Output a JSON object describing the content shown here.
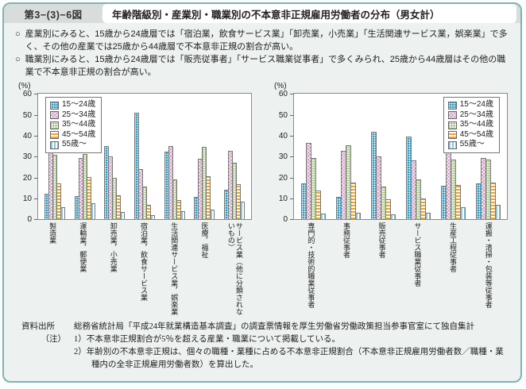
{
  "header": {
    "figure_label": "第3−(3)−6図",
    "title": "年齢階級別・産業別・職業別の不本意非正規雇用労働者の分布（男女計）"
  },
  "bullet_mark": "○",
  "bullets": [
    "産業別にみると、15歳から24歳層では「宿泊業，飲食サービス業」「卸売業，小売業」「生活関連サービス業，娯楽業」で多く、その他の産業では25歳から44歳層で不本意非正規の割合が高い。",
    "職業別にみると、15歳から24歳層では「販売従事者」「サービス職業従事者」で多くみられ、25歳から44歳層はその他の職業で不本意非正規の割合が高い。"
  ],
  "chart_data": [
    {
      "type": "bar",
      "title": "産業別の不本意非正規雇用労働者の分布",
      "unit_label": "(%)",
      "ylim": [
        0,
        60
      ],
      "yticks": [
        0,
        10,
        20,
        30,
        40,
        50,
        60
      ],
      "grid": false,
      "legend_position": "top-left",
      "categories": [
        "製造業",
        "運輸業，郵便業",
        "卸売業，小売業",
        "宿泊業，飲食サービス業",
        "生活関連サービス業，娯楽業",
        "医療，福祉",
        "サービス業（他に分類されないもの）"
      ],
      "series": [
        {
          "name": "15〜24歳",
          "values": [
            12.5,
            11.0,
            35.0,
            51.0,
            32.3,
            10.9,
            14.4
          ]
        },
        {
          "name": "25〜34歳",
          "values": [
            33.0,
            29.4,
            30.0,
            24.0,
            35.2,
            28.9,
            32.7
          ]
        },
        {
          "name": "35〜44歳",
          "values": [
            31.0,
            31.3,
            20.0,
            15.7,
            19.2,
            34.9,
            27.0
          ]
        },
        {
          "name": "45〜54歳",
          "values": [
            17.4,
            20.4,
            11.4,
            7.0,
            9.3,
            20.7,
            16.9
          ]
        },
        {
          "name": "55歳〜",
          "values": [
            6.0,
            7.9,
            3.5,
            2.2,
            4.0,
            4.8,
            8.7
          ]
        }
      ]
    },
    {
      "type": "bar",
      "title": "職業別の不本意非正規雇用労働者の分布",
      "unit_label": "(%)",
      "ylim": [
        0,
        60
      ],
      "yticks": [
        0,
        10,
        20,
        30,
        40,
        50,
        60
      ],
      "grid": false,
      "legend_position": "top-right",
      "categories": [
        "専門的・技術的職業従事者",
        "事務従事者",
        "販売従事者",
        "サービス職業従事者",
        "生産工程従事者",
        "運搬・清掃・包装等従事者"
      ],
      "series": [
        {
          "name": "15〜24歳",
          "values": [
            17.4,
            10.8,
            42.0,
            39.5,
            16.2,
            17.4
          ]
        },
        {
          "name": "25〜34歳",
          "values": [
            36.6,
            32.8,
            30.0,
            28.4,
            33.0,
            29.4
          ]
        },
        {
          "name": "35〜44歳",
          "values": [
            29.5,
            35.4,
            15.9,
            19.2,
            28.5,
            28.6
          ]
        },
        {
          "name": "45〜54歳",
          "values": [
            14.0,
            17.7,
            9.7,
            10.0,
            16.5,
            17.7
          ]
        },
        {
          "name": "55歳〜",
          "values": [
            2.8,
            3.3,
            2.5,
            3.2,
            5.8,
            7.1
          ]
        }
      ]
    }
  ],
  "footer": {
    "source_label": "資料出所",
    "source_text": "総務省統計局「平成24年就業構造基本調査」の調査票情報を厚生労働省労働政策担当参事官室にて独自集計",
    "note_label": "（注）",
    "notes": [
      "1）不本意非正規割合が5％を超える産業・職業について掲載している。",
      "2）年齢別の不本意非正規は、個々の職種・業種に占める不本意非正規割合（不本意非正規雇用労働者数／職種・業種内の全非正規雇用労働者数）を算出した。"
    ]
  },
  "colors": {
    "frame_border": "#7db4b4",
    "panel_bg": "#edf1f0",
    "header_band_bg": "#d8dcdb",
    "title_box_bg": "#ffffff",
    "plot_bg": "#ffffff",
    "series": [
      {
        "name": "15〜24歳",
        "color": "#2e9ec4",
        "pattern": "checker"
      },
      {
        "name": "25〜34歳",
        "color": "#cf9fc4",
        "pattern": "diagonal-crosshatch"
      },
      {
        "name": "35〜44歳",
        "color": "#a9c88e",
        "pattern": "grid"
      },
      {
        "name": "45〜54歳",
        "color": "#efa42f",
        "pattern": "horizontal-dashes"
      },
      {
        "name": "55歳〜",
        "color": "#8cc3de",
        "pattern": "vertical-stripes"
      }
    ]
  }
}
